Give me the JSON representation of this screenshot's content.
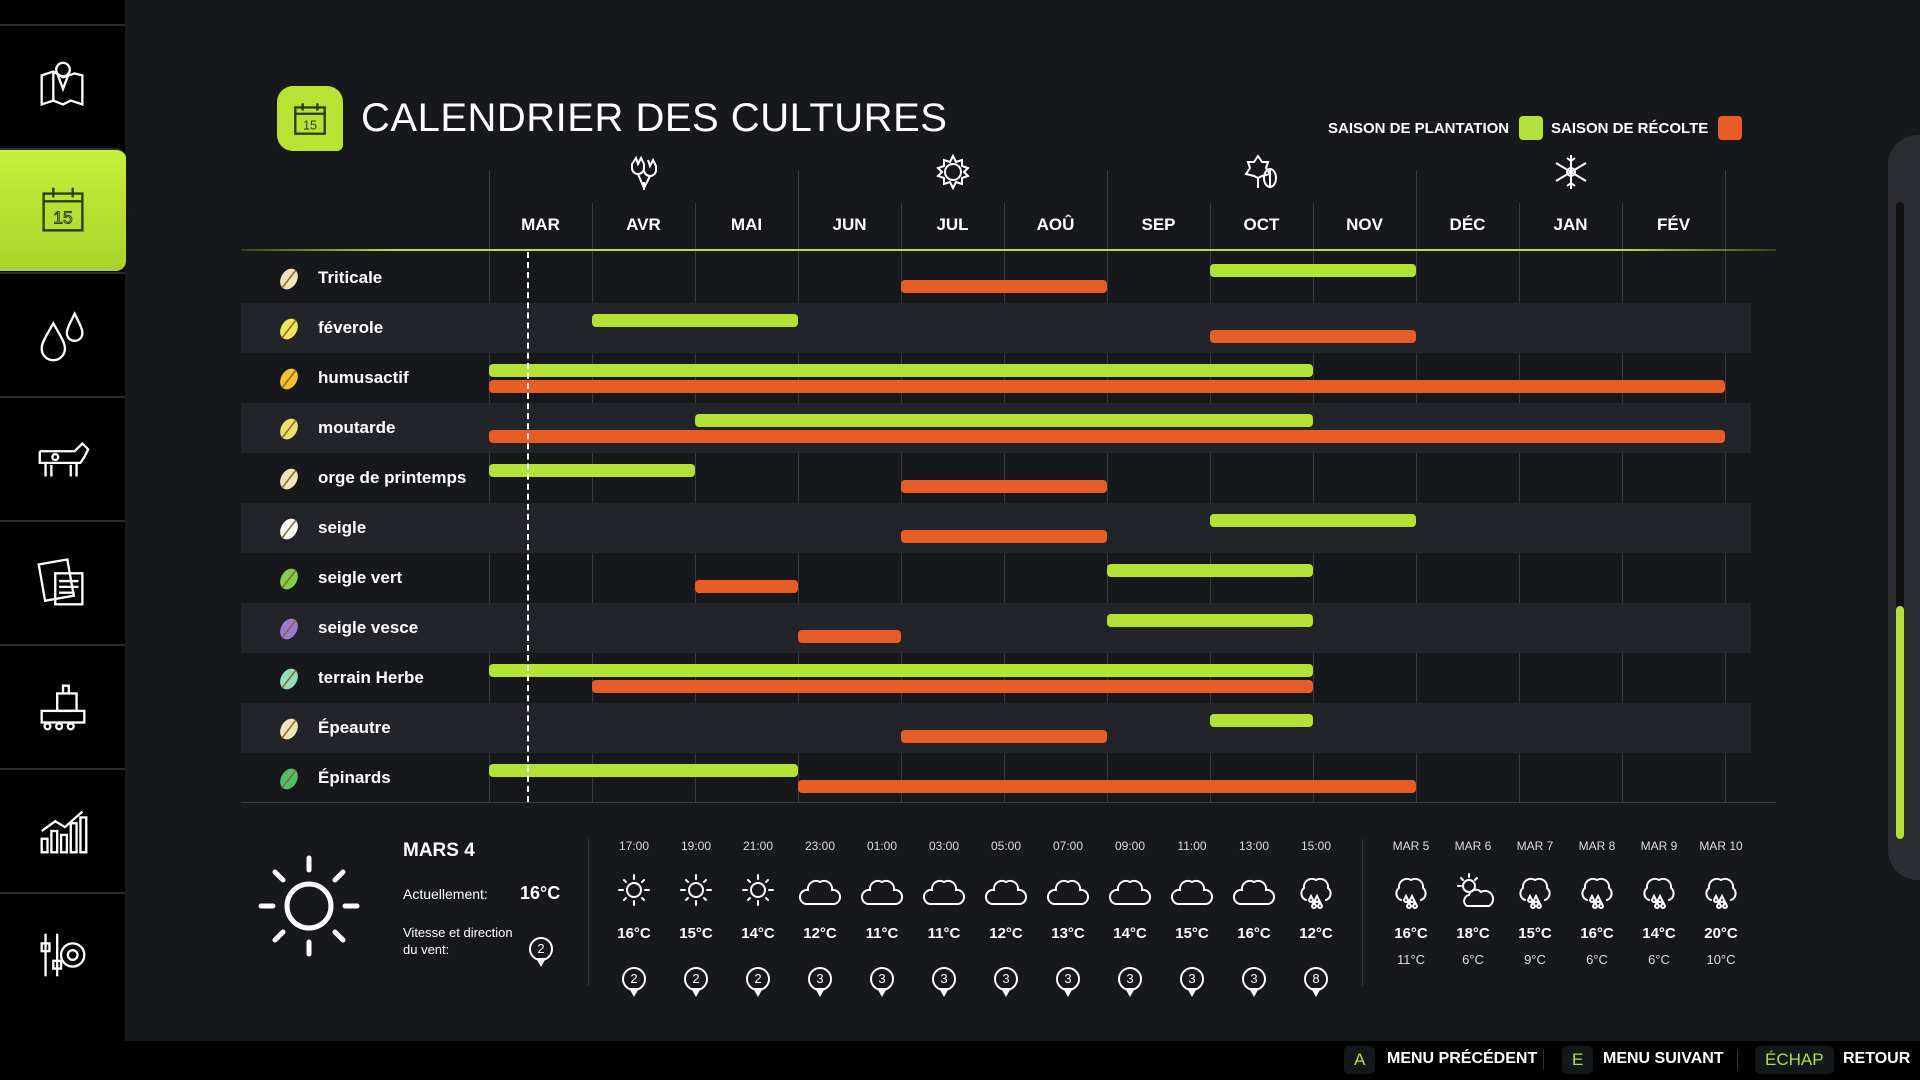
{
  "sidebar": {
    "items": [
      {
        "name": "map",
        "icon": "map-pin-icon"
      },
      {
        "name": "calendar",
        "icon": "calendar-icon",
        "active": true
      },
      {
        "name": "weather",
        "icon": "water-drops-icon"
      },
      {
        "name": "animals",
        "icon": "cow-icon"
      },
      {
        "name": "contracts",
        "icon": "documents-icon"
      },
      {
        "name": "production",
        "icon": "factory-icon"
      },
      {
        "name": "statistics",
        "icon": "bar-chart-icon"
      },
      {
        "name": "settings",
        "icon": "settings-gear-icon"
      }
    ]
  },
  "header": {
    "title": "CALENDRIER DES CULTURES",
    "icon": "calendar-15-icon",
    "calendar_day": "15"
  },
  "legend": {
    "planting": {
      "label": "SAISON DE PLANTATION",
      "color": "#b4e234"
    },
    "harvest": {
      "label": "SAISON DE RÉCOLTE",
      "color": "#e85d26"
    }
  },
  "months": [
    "MAR",
    "AVR",
    "MAI",
    "JUN",
    "JUL",
    "AOÛ",
    "SEP",
    "OCT",
    "NOV",
    "DÉC",
    "JAN",
    "FÉV"
  ],
  "seasons": [
    {
      "icon": "spring-tulip-icon",
      "month": "AVR"
    },
    {
      "icon": "summer-sun-icon",
      "month": "JUL"
    },
    {
      "icon": "autumn-leaves-icon",
      "month": "OCT"
    },
    {
      "icon": "winter-snowflake-icon",
      "month": "JAN"
    }
  ],
  "crops": [
    {
      "name": "Triticale",
      "icon": "wheat-icon",
      "color": "#f3e3b8",
      "plant": [
        "OCT",
        "NOV"
      ],
      "harvest": [
        "JUL",
        "AOÛ"
      ]
    },
    {
      "name": "féverole",
      "icon": "broad-bean-icon",
      "color": "#f2e55a",
      "plant": [
        "AVR",
        "MAI"
      ],
      "harvest": [
        "OCT",
        "NOV"
      ]
    },
    {
      "name": "humusactif",
      "icon": "sunflower-icon",
      "color": "#f2c12e",
      "plant": [
        "MAR",
        "OCT"
      ],
      "harvest": [
        "MAR",
        "FÉV"
      ]
    },
    {
      "name": "moutarde",
      "icon": "mustard-icon",
      "color": "#efe06a",
      "plant": [
        "MAI",
        "OCT"
      ],
      "harvest": [
        "MAR",
        "FÉV"
      ]
    },
    {
      "name": "orge de printemps",
      "icon": "barley-icon",
      "color": "#f3e3b8",
      "plant": [
        "MAR",
        "AVR"
      ],
      "harvest": [
        "JUL",
        "AOÛ"
      ]
    },
    {
      "name": "seigle",
      "icon": "rye-icon",
      "color": "#ffffff",
      "plant": [
        "OCT",
        "NOV"
      ],
      "harvest": [
        "JUL",
        "AOÛ"
      ]
    },
    {
      "name": "seigle vert",
      "icon": "green-rye-icon",
      "color": "#7fcf4a",
      "plant": [
        "SEP",
        "OCT"
      ],
      "harvest": [
        "MAI",
        "MAI"
      ]
    },
    {
      "name": "seigle vesce",
      "icon": "rye-vetch-icon",
      "color": "#9b7ad6",
      "plant": [
        "SEP",
        "OCT"
      ],
      "harvest": [
        "JUN",
        "JUN"
      ]
    },
    {
      "name": "terrain Herbe",
      "icon": "grass-icon",
      "color": "#8fe0b8",
      "plant": [
        "MAR",
        "OCT"
      ],
      "harvest": [
        "AVR",
        "OCT"
      ]
    },
    {
      "name": "Épeautre",
      "icon": "spelt-icon",
      "color": "#f3e3b8",
      "plant": [
        "OCT",
        "OCT"
      ],
      "harvest": [
        "JUL",
        "AOÛ"
      ]
    },
    {
      "name": "Épinards",
      "icon": "spinach-icon",
      "color": "#4fbf6a",
      "plant": [
        "MAR",
        "MAI"
      ],
      "harvest": [
        "JUN",
        "NOV"
      ]
    }
  ],
  "weather": {
    "date": "MARS 4",
    "current_label": "Actuellement:",
    "current_temp": "16°C",
    "current_icon": "sun-icon",
    "wind_label": "Vitesse et direction du vent:",
    "wind": "2",
    "hourly": [
      {
        "time": "17:00",
        "icon": "sun",
        "temp": "16°C",
        "wind": "2"
      },
      {
        "time": "19:00",
        "icon": "sun",
        "temp": "15°C",
        "wind": "2"
      },
      {
        "time": "21:00",
        "icon": "sun",
        "temp": "14°C",
        "wind": "2"
      },
      {
        "time": "23:00",
        "icon": "cloud",
        "temp": "12°C",
        "wind": "3"
      },
      {
        "time": "01:00",
        "icon": "cloud",
        "temp": "11°C",
        "wind": "3"
      },
      {
        "time": "03:00",
        "icon": "cloud",
        "temp": "11°C",
        "wind": "3"
      },
      {
        "time": "05:00",
        "icon": "cloud",
        "temp": "12°C",
        "wind": "3"
      },
      {
        "time": "07:00",
        "icon": "cloud",
        "temp": "13°C",
        "wind": "3"
      },
      {
        "time": "09:00",
        "icon": "cloud",
        "temp": "14°C",
        "wind": "3"
      },
      {
        "time": "11:00",
        "icon": "cloud",
        "temp": "15°C",
        "wind": "3"
      },
      {
        "time": "13:00",
        "icon": "cloud",
        "temp": "16°C",
        "wind": "3"
      },
      {
        "time": "15:00",
        "icon": "rain",
        "temp": "12°C",
        "wind": "8"
      }
    ],
    "daily": [
      {
        "day": "MAR 5",
        "icon": "rain",
        "high": "16°C",
        "low": "11°C"
      },
      {
        "day": "MAR 6",
        "icon": "partly-cloudy",
        "high": "18°C",
        "low": "6°C"
      },
      {
        "day": "MAR 7",
        "icon": "rain",
        "high": "15°C",
        "low": "9°C"
      },
      {
        "day": "MAR 8",
        "icon": "rain",
        "high": "16°C",
        "low": "6°C"
      },
      {
        "day": "MAR 9",
        "icon": "rain",
        "high": "14°C",
        "low": "6°C"
      },
      {
        "day": "MAR 10",
        "icon": "rain",
        "high": "20°C",
        "low": "10°C"
      }
    ]
  },
  "footer": {
    "prev": {
      "key": "A",
      "label": "MENU PRÉCÉDENT"
    },
    "next": {
      "key": "E",
      "label": "MENU SUIVANT"
    },
    "back": {
      "key": "ÉCHAP",
      "label": "RETOUR"
    }
  }
}
